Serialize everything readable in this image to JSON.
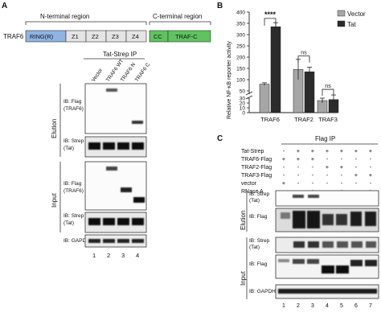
{
  "panels": {
    "a": "A",
    "b": "B",
    "c": "C"
  },
  "panel_a": {
    "protein": "TRAF6",
    "region_n": "N-terminal region",
    "region_c": "C-terminal region",
    "domains": {
      "ring": "RING(R)",
      "z1": "Z1",
      "z2": "Z2",
      "z3": "Z3",
      "z4": "Z4",
      "cc": "CC",
      "trafc": "TRAF-C"
    },
    "ip_title": "Tat-Strep IP",
    "lanes": [
      "Vector",
      "TRAF6 WT",
      "TRAF6 N",
      "TRAF6 C"
    ],
    "lane_numbers": [
      "1",
      "2",
      "3",
      "4"
    ],
    "sections": {
      "elution": "Elution",
      "input": "Input"
    },
    "blots": {
      "elution_flag": [
        "IB: Flag",
        "(TRAF6)"
      ],
      "elution_strep": [
        "IB: Strep",
        "(Tat)"
      ],
      "input_flag": [
        "IB: Flag",
        "(TRAF6)"
      ],
      "input_strep": [
        "IB: Strep",
        "(Tat)"
      ],
      "gapdh": [
        "IB: GAPDH"
      ]
    }
  },
  "chart_data": {
    "type": "bar",
    "categories": [
      "TRAF6",
      "TRAF2",
      "TRAF3"
    ],
    "series": [
      {
        "name": "Vector",
        "values": [
          80,
          145,
          25
        ],
        "errors": [
          6,
          45,
          5
        ],
        "color": "#a6a6a6"
      },
      {
        "name": "Tat",
        "values": [
          335,
          135,
          27
        ],
        "errors": [
          18,
          20,
          5
        ],
        "color": "#2b2b2b"
      }
    ],
    "ylabel": "Relative NF-κB reporter activity",
    "yticks": [
      0,
      10,
      20,
      30,
      50,
      100,
      150,
      200,
      250,
      300,
      350,
      400
    ],
    "ylim": [
      0,
      400
    ],
    "axis_break": [
      30,
      50
    ],
    "legend": [
      "Vector",
      "Tat"
    ],
    "legend_position": "top-right",
    "annotations": [
      "****",
      "ns",
      "ns"
    ]
  },
  "panel_c": {
    "ip_title": "Flag IP",
    "rows": [
      {
        "label": "Tat-Strep",
        "signs": [
          "-",
          "+",
          "+",
          "+",
          "+",
          "+",
          "+"
        ]
      },
      {
        "label": "TRAF6-Flag",
        "signs": [
          "+",
          "+",
          "+",
          "-",
          "-",
          "-",
          "-"
        ]
      },
      {
        "label": "TRAF2-Flag",
        "signs": [
          "-",
          "-",
          "-",
          "+",
          "+",
          "-",
          "-"
        ]
      },
      {
        "label": "TRAF3-Flag",
        "signs": [
          "-",
          "-",
          "-",
          "-",
          "-",
          "+",
          "+"
        ]
      },
      {
        "label": "vector",
        "signs": [
          "+",
          "-",
          "-",
          "-",
          "-",
          "-",
          "-"
        ]
      },
      {
        "label": "RNase A",
        "signs": [
          "-",
          "-",
          "+",
          "-",
          "+",
          "-",
          "+"
        ]
      }
    ],
    "sections": {
      "elution": "Elution",
      "input": "Input"
    },
    "blots": {
      "elution_strep": [
        "IB: Strep",
        "(Tat)"
      ],
      "elution_flag": [
        "IB: Flag"
      ],
      "input_strep": [
        "IB: Strep",
        "(Tat)"
      ],
      "input_flag": [
        "IB: Flag"
      ],
      "gapdh": [
        "IB: GAPDH"
      ]
    },
    "lane_numbers": [
      "1",
      "2",
      "3",
      "4",
      "5",
      "6",
      "7"
    ]
  }
}
